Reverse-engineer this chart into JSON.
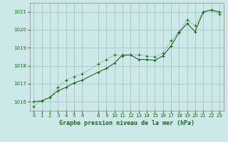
{
  "title": "Graphe pression niveau de la mer (hPa)",
  "bg_color": "#cce8e8",
  "grid_color": "#aacaca",
  "line_color": "#1a6b1a",
  "xlim": [
    -0.5,
    23.5
  ],
  "ylim": [
    1015.5,
    1021.5
  ],
  "xticks": [
    0,
    1,
    2,
    3,
    4,
    5,
    6,
    8,
    9,
    10,
    11,
    12,
    13,
    14,
    15,
    16,
    17,
    18,
    19,
    20,
    21,
    22,
    23
  ],
  "yticks": [
    1016,
    1017,
    1018,
    1019,
    1020,
    1021
  ],
  "series1_x": [
    0,
    1,
    2,
    3,
    4,
    5,
    6,
    8,
    9,
    10,
    11,
    12,
    13,
    14,
    15,
    16,
    17,
    18,
    19,
    20,
    21,
    22,
    23
  ],
  "series1_y": [
    1016.0,
    1016.05,
    1016.25,
    1016.6,
    1016.8,
    1017.05,
    1017.2,
    1017.65,
    1017.85,
    1018.15,
    1018.6,
    1018.6,
    1018.35,
    1018.35,
    1018.3,
    1018.55,
    1019.1,
    1019.85,
    1020.35,
    1019.9,
    1021.0,
    1021.1,
    1021.0
  ],
  "series2_x": [
    0,
    1,
    2,
    3,
    4,
    5,
    6,
    8,
    9,
    10,
    11,
    12,
    13,
    14,
    15,
    16,
    17,
    18,
    19,
    20,
    21,
    22,
    23
  ],
  "series2_y": [
    1015.75,
    1016.05,
    1016.25,
    1016.8,
    1017.2,
    1017.4,
    1017.55,
    1018.1,
    1018.35,
    1018.6,
    1018.55,
    1018.6,
    1018.6,
    1018.55,
    1018.5,
    1018.7,
    1019.4,
    1019.9,
    1020.55,
    1020.25,
    1021.0,
    1021.1,
    1020.85
  ]
}
